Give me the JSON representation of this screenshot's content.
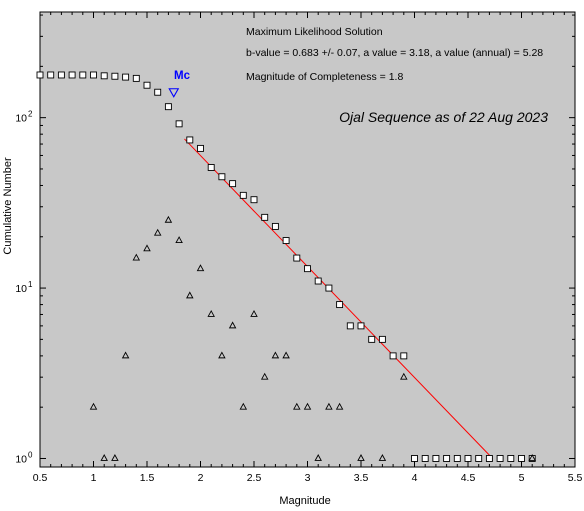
{
  "chart_data": {
    "type": "scatter",
    "y_scale": "log",
    "xlim": [
      0.5,
      5.5
    ],
    "ylim_log10": [
      -0.05,
      2.62
    ],
    "xlabel": "Magnitude",
    "ylabel": "Cumulative Number",
    "x_ticks": [
      "0.5",
      "1",
      "1.5",
      "2",
      "2.5",
      "3",
      "3.5",
      "4",
      "4.5",
      "5",
      "5.5"
    ],
    "y_ticks": [
      "10^0",
      "10^1",
      "10^2"
    ],
    "annotations": {
      "solution_title": "Maximum Likelihood Solution",
      "solution_params": "b-value = 0.683 +/- 0.07,  a value = 3.18,  a value (annual) = 5.28",
      "completeness": "Magnitude of Completeness = 1.8",
      "sequence_title": "Ojal Sequence as of 22 Aug 2023",
      "mc_label": "Mc"
    },
    "mc_marker": {
      "x": 1.75,
      "y": 140
    },
    "fit_line": {
      "x": [
        1.85,
        4.73
      ],
      "y": [
        75,
        1
      ]
    },
    "series": [
      {
        "marker": "square",
        "x": [
          0.5,
          0.6,
          0.7,
          0.8,
          0.9,
          1.0,
          1.1,
          1.2,
          1.3,
          1.4,
          1.5,
          1.6,
          1.7,
          1.8,
          1.9,
          2.0,
          2.1,
          2.2,
          2.3,
          2.4,
          2.5,
          2.6,
          2.7,
          2.8,
          2.9,
          3.0,
          3.1,
          3.2,
          3.3,
          3.4,
          3.5,
          3.6,
          3.7,
          3.8,
          3.9,
          4.0,
          4.1,
          4.2,
          4.3,
          4.4,
          4.5,
          4.6,
          4.7,
          4.8,
          4.9,
          5.0,
          5.1
        ],
        "y": [
          178,
          178,
          178,
          178,
          178,
          178,
          176,
          175,
          173,
          170,
          155,
          141,
          116,
          92,
          74,
          66,
          51,
          45,
          41,
          35,
          33,
          26,
          23,
          19,
          15,
          13,
          11,
          10,
          8,
          6,
          6,
          5,
          5,
          4,
          4,
          1,
          1,
          1,
          1,
          1,
          1,
          1,
          1,
          1,
          1,
          1,
          1
        ]
      },
      {
        "marker": "triangle",
        "x": [
          1.0,
          1.1,
          1.2,
          1.3,
          1.4,
          1.5,
          1.6,
          1.7,
          1.8,
          1.9,
          2.0,
          2.1,
          2.2,
          2.3,
          2.4,
          2.5,
          2.6,
          2.7,
          2.8,
          2.9,
          3.0,
          3.1,
          3.2,
          3.3,
          3.5,
          3.7,
          3.9,
          5.1
        ],
        "y": [
          2,
          1,
          1,
          4,
          15,
          17,
          21,
          25,
          19,
          9,
          13,
          7,
          4,
          6,
          2,
          7,
          3,
          4,
          4,
          2,
          2,
          1,
          2,
          2,
          1,
          1,
          3,
          1
        ]
      }
    ]
  },
  "colors": {
    "plot_bg": "#c8c8c8",
    "fit_line": "#ff0000",
    "mc": "#0000ff",
    "marker_edge": "#000000",
    "square_fill": "#ffffff",
    "triangle_fill": "#c8c8c8"
  }
}
